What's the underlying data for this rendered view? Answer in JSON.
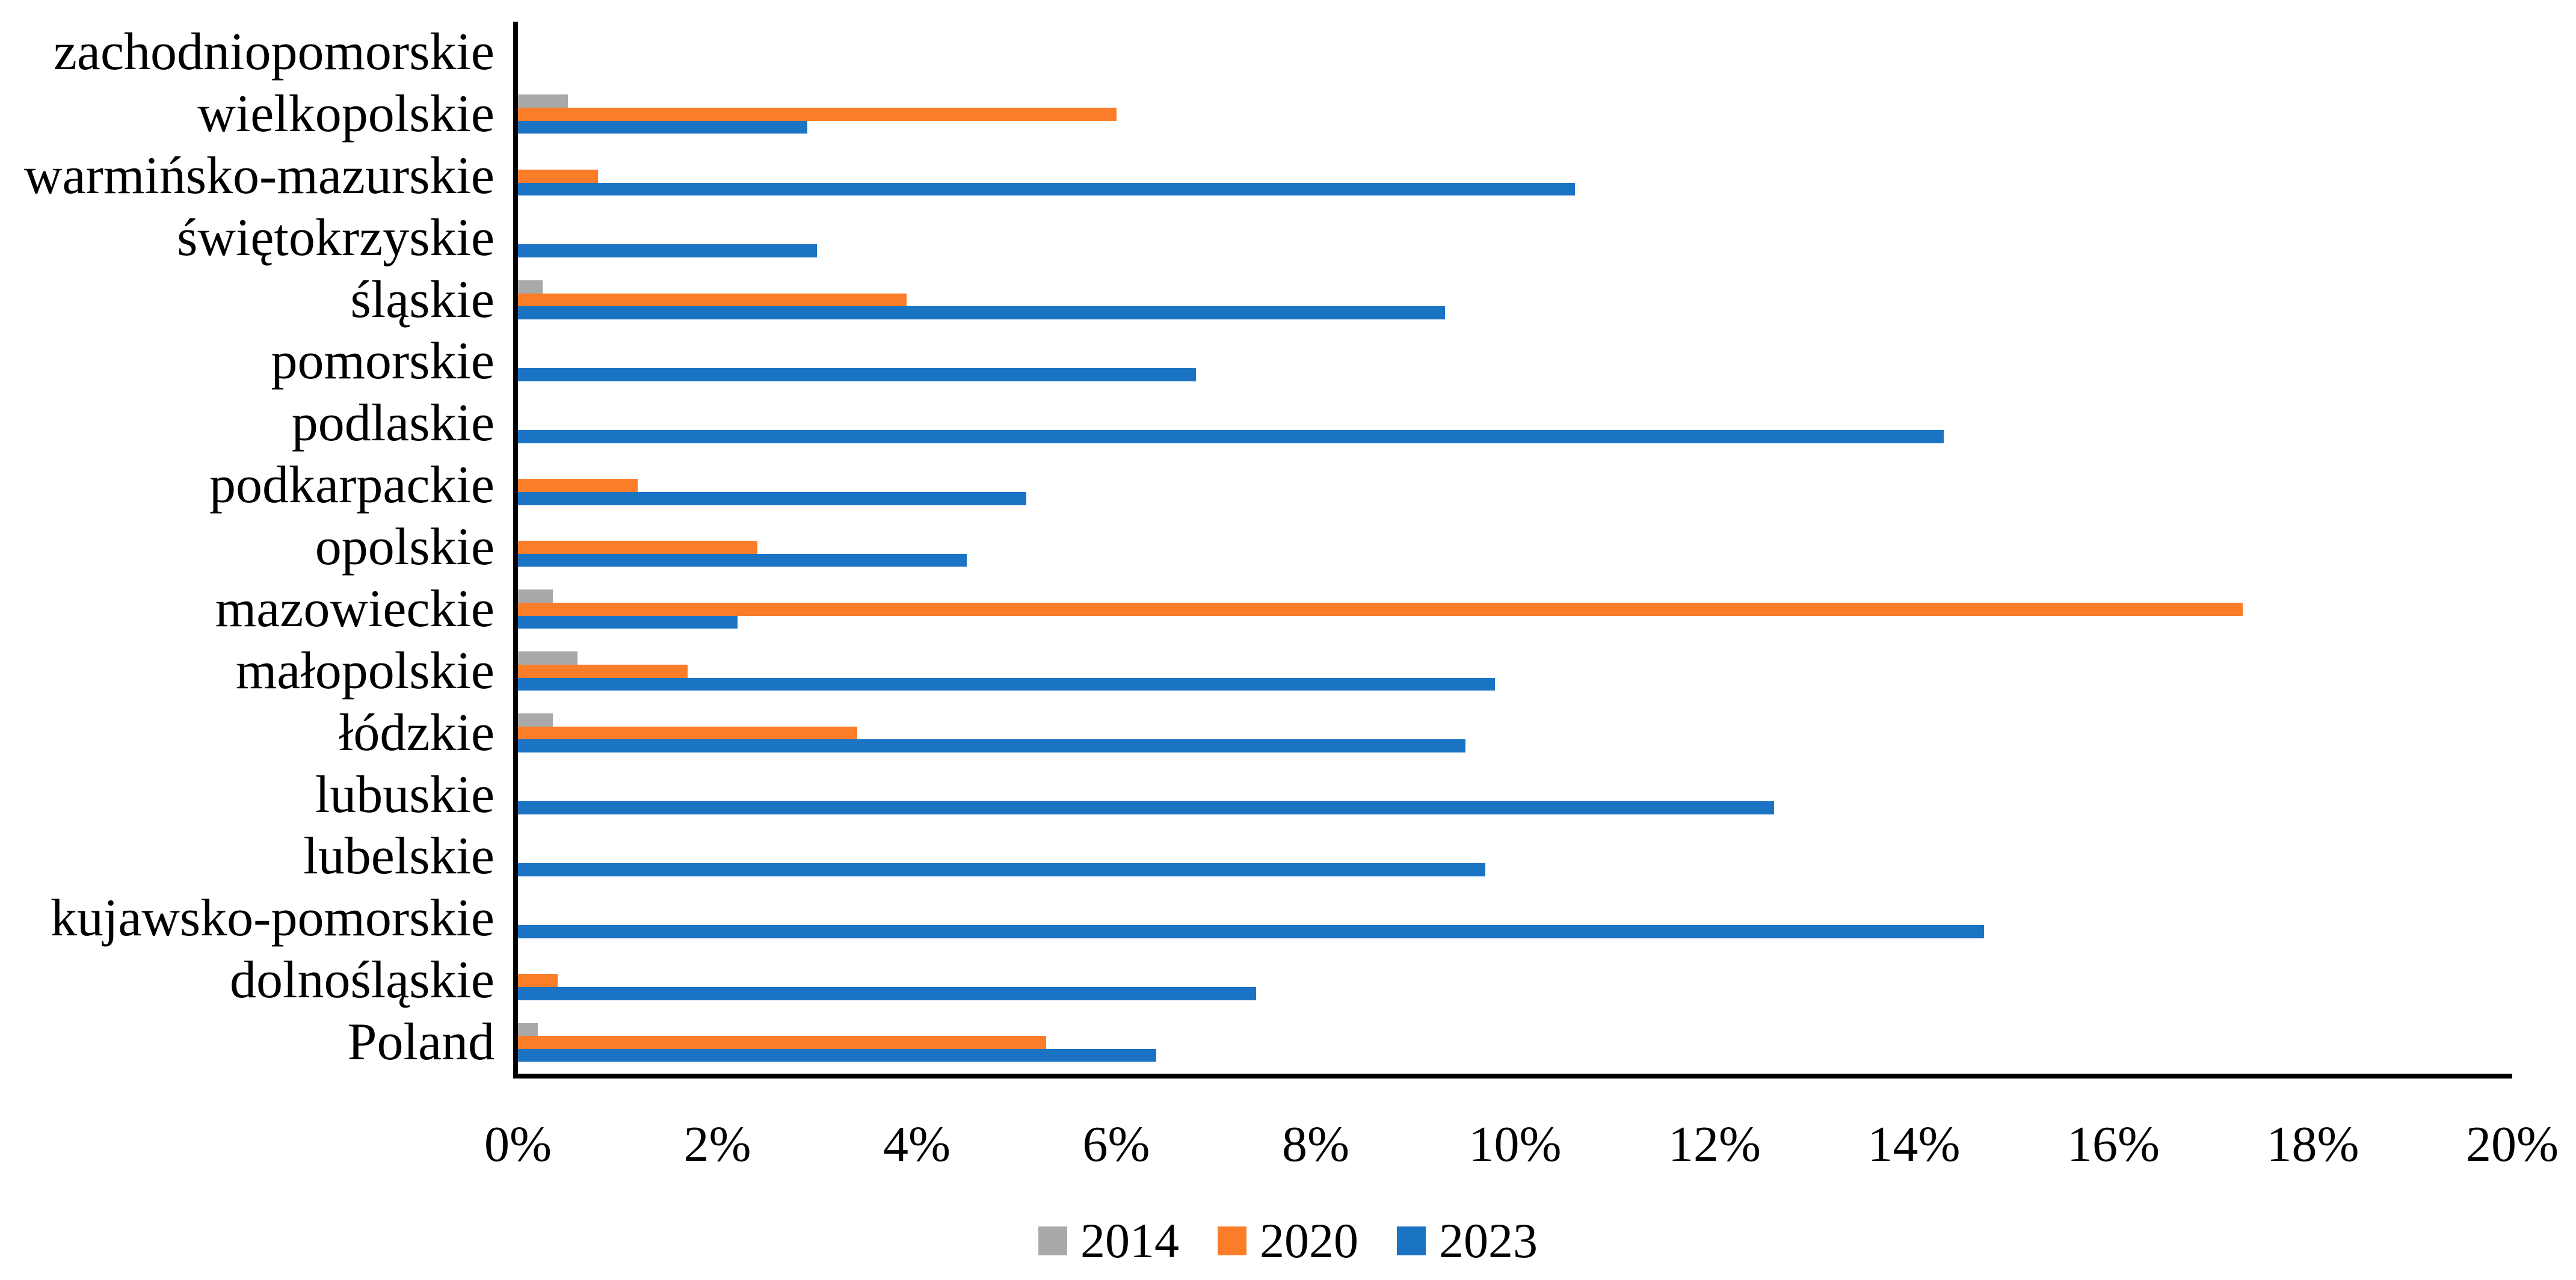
{
  "chart_data": {
    "type": "bar",
    "orientation": "horizontal",
    "title": "",
    "xlabel": "",
    "ylabel": "",
    "unit": "%",
    "xlim": [
      0,
      20
    ],
    "x_ticks": [
      "0%",
      "2%",
      "4%",
      "6%",
      "8%",
      "10%",
      "12%",
      "14%",
      "16%",
      "18%",
      "20%"
    ],
    "grid": "off",
    "legend_position": "bottom-center",
    "categories": [
      "zachodniopomorskie",
      "wielkopolskie",
      "warmińsko-mazurskie",
      "świętokrzyskie",
      "śląskie",
      "pomorskie",
      "podlaskie",
      "podkarpackie",
      "opolskie",
      "mazowieckie",
      "małopolskie",
      "łódzkie",
      "lubuskie",
      "lubelskie",
      "kujawsko-pomorskie",
      "dolnośląskie",
      "Poland"
    ],
    "series": [
      {
        "name": "2014",
        "color": "#A9A9A9",
        "values": [
          0,
          0.5,
          0,
          0,
          0.25,
          0,
          0,
          0,
          0,
          0.35,
          0.6,
          0.35,
          0,
          0,
          0,
          0,
          0.2
        ]
      },
      {
        "name": "2020",
        "color": "#FB7D2A",
        "values": [
          0,
          6.0,
          0.8,
          0,
          3.9,
          0,
          0,
          1.2,
          2.4,
          17.3,
          1.7,
          3.4,
          0,
          0,
          0,
          0.4,
          5.3
        ]
      },
      {
        "name": "2023",
        "color": "#1B73C4",
        "values": [
          0,
          2.9,
          10.6,
          3.0,
          9.3,
          6.8,
          14.3,
          5.1,
          4.5,
          2.2,
          9.8,
          9.5,
          12.6,
          9.7,
          14.7,
          7.4,
          6.4
        ]
      }
    ],
    "axis_color": "#000000",
    "background_color": "#FFFFFF"
  }
}
